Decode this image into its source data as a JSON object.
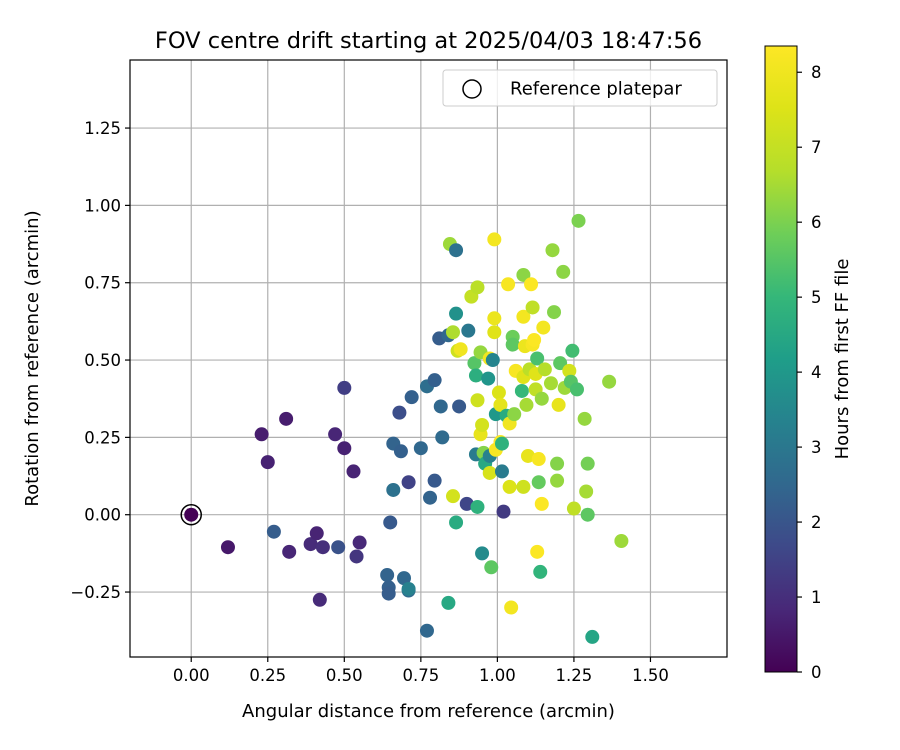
{
  "chart_data": {
    "type": "scatter",
    "title": "FOV centre drift starting at 2025/04/03 18:47:56",
    "xlabel": "Angular distance from reference (arcmin)",
    "ylabel": "Rotation from reference (arcmin)",
    "xlim": [
      -0.2,
      1.75
    ],
    "ylim": [
      -0.46,
      1.47
    ],
    "xticks": [
      "0.00",
      "0.25",
      "0.50",
      "0.75",
      "1.00",
      "1.25",
      "1.50"
    ],
    "yticks": [
      "−0.25",
      "0.00",
      "0.25",
      "0.50",
      "0.75",
      "1.00",
      "1.25"
    ],
    "grid": true,
    "legend": {
      "placement": "top-right",
      "entries": [
        {
          "label": "Reference platepar",
          "marker": "open-circle"
        }
      ]
    },
    "reference_point": {
      "x": 0,
      "y": 0
    },
    "colorbar": {
      "label": "Hours from first FF file",
      "colormap": "viridis",
      "range": [
        0,
        8.35
      ],
      "ticks": [
        "0",
        "1",
        "2",
        "3",
        "4",
        "5",
        "6",
        "7",
        "8"
      ]
    },
    "points": [
      {
        "x": 0.0,
        "y": 0.0,
        "h": 0.02
      },
      {
        "x": 0.12,
        "y": -0.105,
        "h": 0.5
      },
      {
        "x": 0.23,
        "y": 0.26,
        "h": 0.6
      },
      {
        "x": 0.25,
        "y": 0.17,
        "h": 0.7
      },
      {
        "x": 0.31,
        "y": 0.31,
        "h": 0.6
      },
      {
        "x": 0.32,
        "y": -0.12,
        "h": 0.8
      },
      {
        "x": 0.39,
        "y": -0.095,
        "h": 0.9
      },
      {
        "x": 0.41,
        "y": -0.06,
        "h": 0.75
      },
      {
        "x": 0.43,
        "y": -0.105,
        "h": 1.0
      },
      {
        "x": 0.42,
        "y": -0.275,
        "h": 0.9
      },
      {
        "x": 0.47,
        "y": 0.26,
        "h": 0.8
      },
      {
        "x": 0.5,
        "y": 0.215,
        "h": 0.7
      },
      {
        "x": 0.5,
        "y": 0.41,
        "h": 1.4
      },
      {
        "x": 0.53,
        "y": 0.14,
        "h": 0.75
      },
      {
        "x": 0.55,
        "y": -0.09,
        "h": 0.85
      },
      {
        "x": 0.54,
        "y": -0.135,
        "h": 1.2
      },
      {
        "x": 0.48,
        "y": -0.105,
        "h": 1.9
      },
      {
        "x": 0.27,
        "y": -0.055,
        "h": 2.2
      },
      {
        "x": 0.64,
        "y": -0.195,
        "h": 2.4
      },
      {
        "x": 0.65,
        "y": -0.025,
        "h": 2.1
      },
      {
        "x": 0.645,
        "y": -0.235,
        "h": 2.3
      },
      {
        "x": 0.645,
        "y": -0.255,
        "h": 2.2
      },
      {
        "x": 0.66,
        "y": 0.23,
        "h": 2.4
      },
      {
        "x": 0.66,
        "y": 0.08,
        "h": 2.8
      },
      {
        "x": 0.68,
        "y": 0.33,
        "h": 1.8
      },
      {
        "x": 0.685,
        "y": 0.205,
        "h": 2.3
      },
      {
        "x": 0.695,
        "y": -0.205,
        "h": 2.5
      },
      {
        "x": 0.71,
        "y": -0.245,
        "h": 2.6
      },
      {
        "x": 0.71,
        "y": -0.24,
        "h": 3.3
      },
      {
        "x": 0.71,
        "y": 0.105,
        "h": 1.5
      },
      {
        "x": 0.72,
        "y": 0.38,
        "h": 2.3
      },
      {
        "x": 0.75,
        "y": 0.215,
        "h": 2.5
      },
      {
        "x": 0.77,
        "y": 0.415,
        "h": 2.7
      },
      {
        "x": 0.77,
        "y": -0.375,
        "h": 2.5
      },
      {
        "x": 0.78,
        "y": 0.055,
        "h": 2.4
      },
      {
        "x": 0.795,
        "y": 0.435,
        "h": 2.3
      },
      {
        "x": 0.795,
        "y": 0.11,
        "h": 2.1
      },
      {
        "x": 0.81,
        "y": 0.57,
        "h": 2.2
      },
      {
        "x": 0.815,
        "y": 0.35,
        "h": 2.5
      },
      {
        "x": 0.82,
        "y": 0.25,
        "h": 2.6
      },
      {
        "x": 0.84,
        "y": 0.58,
        "h": 2.5
      },
      {
        "x": 0.84,
        "y": -0.285,
        "h": 4.5
      },
      {
        "x": 0.845,
        "y": 0.875,
        "h": 6.4
      },
      {
        "x": 0.855,
        "y": 0.06,
        "h": 7.3
      },
      {
        "x": 0.855,
        "y": 0.59,
        "h": 6.6
      },
      {
        "x": 0.865,
        "y": -0.025,
        "h": 4.6
      },
      {
        "x": 0.865,
        "y": 0.855,
        "h": 2.8
      },
      {
        "x": 0.865,
        "y": 0.65,
        "h": 3.8
      },
      {
        "x": 0.875,
        "y": 0.35,
        "h": 2.1
      },
      {
        "x": 0.87,
        "y": 0.53,
        "h": 7.2
      },
      {
        "x": 0.88,
        "y": 0.535,
        "h": 8.0
      },
      {
        "x": 0.9,
        "y": 0.035,
        "h": 1.6
      },
      {
        "x": 0.905,
        "y": 0.595,
        "h": 3.0
      },
      {
        "x": 0.915,
        "y": 0.705,
        "h": 7.0
      },
      {
        "x": 0.925,
        "y": 0.49,
        "h": 5.5
      },
      {
        "x": 0.93,
        "y": 0.195,
        "h": 3.1
      },
      {
        "x": 0.93,
        "y": 0.45,
        "h": 4.7
      },
      {
        "x": 0.935,
        "y": 0.735,
        "h": 6.8
      },
      {
        "x": 0.935,
        "y": 0.025,
        "h": 4.8
      },
      {
        "x": 0.935,
        "y": 0.37,
        "h": 7.2
      },
      {
        "x": 0.945,
        "y": 0.525,
        "h": 6.3
      },
      {
        "x": 0.945,
        "y": 0.26,
        "h": 7.8
      },
      {
        "x": 0.95,
        "y": 0.29,
        "h": 7.3
      },
      {
        "x": 0.95,
        "y": -0.125,
        "h": 3.6
      },
      {
        "x": 0.955,
        "y": 0.2,
        "h": 6.1
      },
      {
        "x": 0.96,
        "y": 0.165,
        "h": 4.5
      },
      {
        "x": 0.97,
        "y": 0.44,
        "h": 3.9
      },
      {
        "x": 0.975,
        "y": 0.19,
        "h": 3.3
      },
      {
        "x": 0.975,
        "y": 0.505,
        "h": 8.0
      },
      {
        "x": 0.975,
        "y": 0.135,
        "h": 7.4
      },
      {
        "x": 0.98,
        "y": -0.17,
        "h": 5.6
      },
      {
        "x": 0.985,
        "y": 0.5,
        "h": 3.4
      },
      {
        "x": 0.99,
        "y": 0.89,
        "h": 8.1
      },
      {
        "x": 0.99,
        "y": 0.635,
        "h": 7.9
      },
      {
        "x": 0.99,
        "y": 0.59,
        "h": 7.6
      },
      {
        "x": 0.995,
        "y": 0.325,
        "h": 4.0
      },
      {
        "x": 0.995,
        "y": 0.21,
        "h": 8.2
      },
      {
        "x": 1.005,
        "y": 0.395,
        "h": 7.5
      },
      {
        "x": 1.01,
        "y": 0.235,
        "h": 8.3
      },
      {
        "x": 1.01,
        "y": 0.355,
        "h": 7.7
      },
      {
        "x": 1.015,
        "y": 0.23,
        "h": 4.8
      },
      {
        "x": 1.015,
        "y": 0.14,
        "h": 3.1
      },
      {
        "x": 1.02,
        "y": 0.01,
        "h": 1.3
      },
      {
        "x": 1.03,
        "y": 0.32,
        "h": 4.6
      },
      {
        "x": 1.035,
        "y": 0.745,
        "h": 8.2
      },
      {
        "x": 1.04,
        "y": 0.295,
        "h": 8.0
      },
      {
        "x": 1.04,
        "y": 0.09,
        "h": 7.5
      },
      {
        "x": 1.045,
        "y": -0.3,
        "h": 8.1
      },
      {
        "x": 1.05,
        "y": 0.575,
        "h": 5.8
      },
      {
        "x": 1.05,
        "y": 0.55,
        "h": 5.6
      },
      {
        "x": 1.055,
        "y": 0.325,
        "h": 6.2
      },
      {
        "x": 1.06,
        "y": 0.465,
        "h": 8.2
      },
      {
        "x": 1.08,
        "y": 0.4,
        "h": 5.0
      },
      {
        "x": 1.085,
        "y": 0.775,
        "h": 6.2
      },
      {
        "x": 1.085,
        "y": 0.64,
        "h": 8.1
      },
      {
        "x": 1.085,
        "y": 0.445,
        "h": 7.6
      },
      {
        "x": 1.085,
        "y": 0.09,
        "h": 7.2
      },
      {
        "x": 1.09,
        "y": 0.545,
        "h": 7.9
      },
      {
        "x": 1.095,
        "y": 0.355,
        "h": 6.5
      },
      {
        "x": 1.1,
        "y": 0.19,
        "h": 7.8
      },
      {
        "x": 1.105,
        "y": 0.47,
        "h": 6.8
      },
      {
        "x": 1.11,
        "y": 0.745,
        "h": 8.3
      },
      {
        "x": 1.115,
        "y": 0.67,
        "h": 6.9
      },
      {
        "x": 1.115,
        "y": 0.55,
        "h": 8.2
      },
      {
        "x": 1.12,
        "y": 0.565,
        "h": 8.3
      },
      {
        "x": 1.125,
        "y": 0.455,
        "h": 7.6
      },
      {
        "x": 1.125,
        "y": 0.405,
        "h": 6.9
      },
      {
        "x": 1.13,
        "y": -0.12,
        "h": 8.3
      },
      {
        "x": 1.13,
        "y": 0.505,
        "h": 5.3
      },
      {
        "x": 1.135,
        "y": 0.105,
        "h": 5.7
      },
      {
        "x": 1.135,
        "y": 0.18,
        "h": 8.2
      },
      {
        "x": 1.14,
        "y": -0.185,
        "h": 4.9
      },
      {
        "x": 1.145,
        "y": 0.375,
        "h": 6.3
      },
      {
        "x": 1.145,
        "y": 0.035,
        "h": 8.3
      },
      {
        "x": 1.15,
        "y": 0.605,
        "h": 8.1
      },
      {
        "x": 1.155,
        "y": 0.47,
        "h": 6.7
      },
      {
        "x": 1.175,
        "y": 0.425,
        "h": 6.5
      },
      {
        "x": 1.18,
        "y": 0.855,
        "h": 6.3
      },
      {
        "x": 1.185,
        "y": 0.655,
        "h": 6.1
      },
      {
        "x": 1.195,
        "y": 0.165,
        "h": 6.1
      },
      {
        "x": 1.195,
        "y": 0.11,
        "h": 6.3
      },
      {
        "x": 1.2,
        "y": 0.355,
        "h": 7.8
      },
      {
        "x": 1.205,
        "y": 0.49,
        "h": 5.6
      },
      {
        "x": 1.215,
        "y": 0.785,
        "h": 6.2
      },
      {
        "x": 1.22,
        "y": 0.41,
        "h": 6.4
      },
      {
        "x": 1.235,
        "y": 0.465,
        "h": 7.3
      },
      {
        "x": 1.24,
        "y": 0.43,
        "h": 5.5
      },
      {
        "x": 1.245,
        "y": 0.53,
        "h": 5.2
      },
      {
        "x": 1.25,
        "y": 0.02,
        "h": 6.9
      },
      {
        "x": 1.26,
        "y": 0.405,
        "h": 5.3
      },
      {
        "x": 1.265,
        "y": 0.95,
        "h": 6.0
      },
      {
        "x": 1.285,
        "y": 0.31,
        "h": 6.3
      },
      {
        "x": 1.29,
        "y": 0.075,
        "h": 6.5
      },
      {
        "x": 1.295,
        "y": 0.165,
        "h": 5.9
      },
      {
        "x": 1.295,
        "y": 0.0,
        "h": 5.6
      },
      {
        "x": 1.31,
        "y": -0.395,
        "h": 4.4
      },
      {
        "x": 1.365,
        "y": 0.43,
        "h": 6.3
      },
      {
        "x": 1.405,
        "y": -0.085,
        "h": 6.4
      }
    ]
  }
}
